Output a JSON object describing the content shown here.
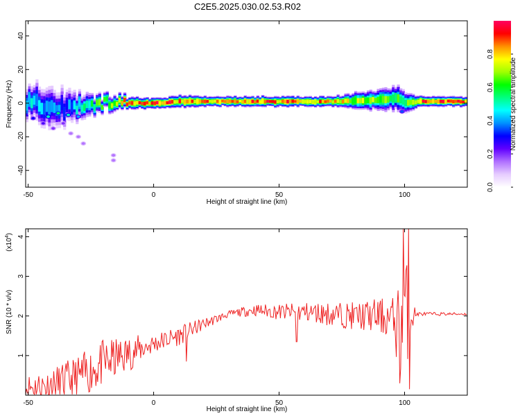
{
  "figure": {
    "title": "C2E5.2025.030.02.53.R02"
  },
  "chart_data": [
    {
      "type": "heatmap",
      "xlabel": "Height of straight line (km)",
      "ylabel": "Frequency (Hz)",
      "xlim": [
        -51,
        125
      ],
      "ylim": [
        -50,
        49
      ],
      "xticks": [
        -50,
        0,
        50,
        100
      ],
      "yticks": [
        40,
        20,
        0,
        -20,
        -40
      ],
      "colorbar": {
        "label": "Normalized spectral amplitude",
        "range": [
          0,
          1
        ],
        "ticks": [
          0.0,
          0.2,
          0.4,
          0.6,
          0.8
        ],
        "colors": [
          "#ffffff",
          "#e6ccff",
          "#b070ff",
          "#6000ff",
          "#0000ff",
          "#0090ff",
          "#00ffff",
          "#00ff80",
          "#00ff00",
          "#a0ff00",
          "#ffff00",
          "#ff9000",
          "#ff0000",
          "#ff0060"
        ]
      },
      "band": [
        {
          "x": -50,
          "center": 1,
          "width": 7,
          "amp": 0.45
        },
        {
          "x": -45,
          "center": -1,
          "width": 10,
          "amp": 0.4
        },
        {
          "x": -40,
          "center": -2,
          "width": 9,
          "amp": 0.38
        },
        {
          "x": -35,
          "center": -3,
          "width": 8,
          "amp": 0.35
        },
        {
          "x": -30,
          "center": -2,
          "width": 6,
          "amp": 0.45
        },
        {
          "x": -25,
          "center": -1,
          "width": 5,
          "amp": 0.55
        },
        {
          "x": -20,
          "center": 0,
          "width": 4,
          "amp": 0.65
        },
        {
          "x": -15,
          "center": 0,
          "width": 3.5,
          "amp": 0.75
        },
        {
          "x": -10,
          "center": 0,
          "width": 3,
          "amp": 0.8
        },
        {
          "x": 0,
          "center": 0,
          "width": 2.5,
          "amp": 0.9
        },
        {
          "x": 10,
          "center": 1,
          "width": 3,
          "amp": 0.85
        },
        {
          "x": 20,
          "center": 1,
          "width": 2.5,
          "amp": 0.85
        },
        {
          "x": 30,
          "center": 1,
          "width": 2.5,
          "amp": 0.8
        },
        {
          "x": 40,
          "center": 1,
          "width": 2.5,
          "amp": 0.85
        },
        {
          "x": 50,
          "center": 1,
          "width": 2.5,
          "amp": 0.85
        },
        {
          "x": 60,
          "center": 1,
          "width": 2.5,
          "amp": 0.85
        },
        {
          "x": 70,
          "center": 1,
          "width": 2.5,
          "amp": 0.8
        },
        {
          "x": 80,
          "center": 1.5,
          "width": 4,
          "amp": 0.7
        },
        {
          "x": 90,
          "center": 2,
          "width": 5,
          "amp": 0.65
        },
        {
          "x": 97,
          "center": 3,
          "width": 6,
          "amp": 0.6
        },
        {
          "x": 100,
          "center": 0,
          "width": 5,
          "amp": 0.55
        },
        {
          "x": 105,
          "center": 1,
          "width": 2.5,
          "amp": 0.85
        },
        {
          "x": 115,
          "center": 1,
          "width": 2.5,
          "amp": 0.85
        },
        {
          "x": 125,
          "center": 1,
          "width": 2.5,
          "amp": 0.85
        }
      ],
      "scatter_blobs": [
        {
          "x": -44,
          "y": -12,
          "amp": 0.25
        },
        {
          "x": -40,
          "y": -15,
          "amp": 0.2
        },
        {
          "x": -36,
          "y": -12,
          "amp": 0.2
        },
        {
          "x": -33,
          "y": -18,
          "amp": 0.15
        },
        {
          "x": -30,
          "y": -20,
          "amp": 0.15
        },
        {
          "x": -28,
          "y": -24,
          "amp": 0.15
        },
        {
          "x": -16,
          "y": -31,
          "amp": 0.15
        },
        {
          "x": -16,
          "y": -34,
          "amp": 0.15
        },
        {
          "x": -48,
          "y": -9,
          "amp": 0.3
        },
        {
          "x": -42,
          "y": -8,
          "amp": 0.5
        },
        {
          "x": -38,
          "y": -6,
          "amp": 0.55
        },
        {
          "x": -34,
          "y": -7,
          "amp": 0.5
        },
        {
          "x": -30,
          "y": -8,
          "amp": 0.4
        },
        {
          "x": 99,
          "y": -5,
          "amp": 0.35
        }
      ]
    },
    {
      "type": "line",
      "xlabel": "Height of straight line (km)",
      "ylabel": "SNR (10 * v/v)",
      "scale_label": "(x10",
      "scale_exponent": "4",
      "xlim": [
        -51,
        125
      ],
      "ylim": [
        0,
        4.2
      ],
      "xticks": [
        -50,
        0,
        50,
        100
      ],
      "yticks": [
        1,
        2,
        3,
        4
      ],
      "color": "#ee2222",
      "envelope": [
        {
          "x": -50,
          "base": 0.2,
          "amp": 0.35
        },
        {
          "x": -40,
          "base": 0.25,
          "amp": 0.45
        },
        {
          "x": -30,
          "base": 0.45,
          "amp": 0.55
        },
        {
          "x": -20,
          "base": 0.8,
          "amp": 0.6
        },
        {
          "x": -10,
          "base": 1.05,
          "amp": 0.45
        },
        {
          "x": 0,
          "base": 1.3,
          "amp": 0.25
        },
        {
          "x": 10,
          "base": 1.5,
          "amp": 0.25
        },
        {
          "x": 20,
          "base": 1.8,
          "amp": 0.15
        },
        {
          "x": 30,
          "base": 2.05,
          "amp": 0.08
        },
        {
          "x": 40,
          "base": 2.15,
          "amp": 0.15
        },
        {
          "x": 50,
          "base": 2.1,
          "amp": 0.2
        },
        {
          "x": 60,
          "base": 2.1,
          "amp": 0.25
        },
        {
          "x": 70,
          "base": 2.05,
          "amp": 0.3
        },
        {
          "x": 80,
          "base": 2.0,
          "amp": 0.35
        },
        {
          "x": 90,
          "base": 2.0,
          "amp": 0.45
        },
        {
          "x": 96,
          "base": 1.9,
          "amp": 0.6
        },
        {
          "x": 98,
          "base": 1.6,
          "amp": 1.4
        },
        {
          "x": 100,
          "base": 2.0,
          "amp": 2.0
        },
        {
          "x": 102,
          "base": 2.0,
          "amp": 0.6
        },
        {
          "x": 105,
          "base": 2.05,
          "amp": 0.05
        },
        {
          "x": 125,
          "base": 2.05,
          "amp": 0.03
        }
      ],
      "features": [
        {
          "x": 13,
          "y": 0.85
        },
        {
          "x": 57,
          "y": 1.35
        },
        {
          "x": 98,
          "y": 0.3
        },
        {
          "x": 99.5,
          "y": 4.2
        },
        {
          "x": 101.5,
          "y": 4.2
        },
        {
          "x": 102,
          "y": 0.15
        }
      ]
    }
  ]
}
